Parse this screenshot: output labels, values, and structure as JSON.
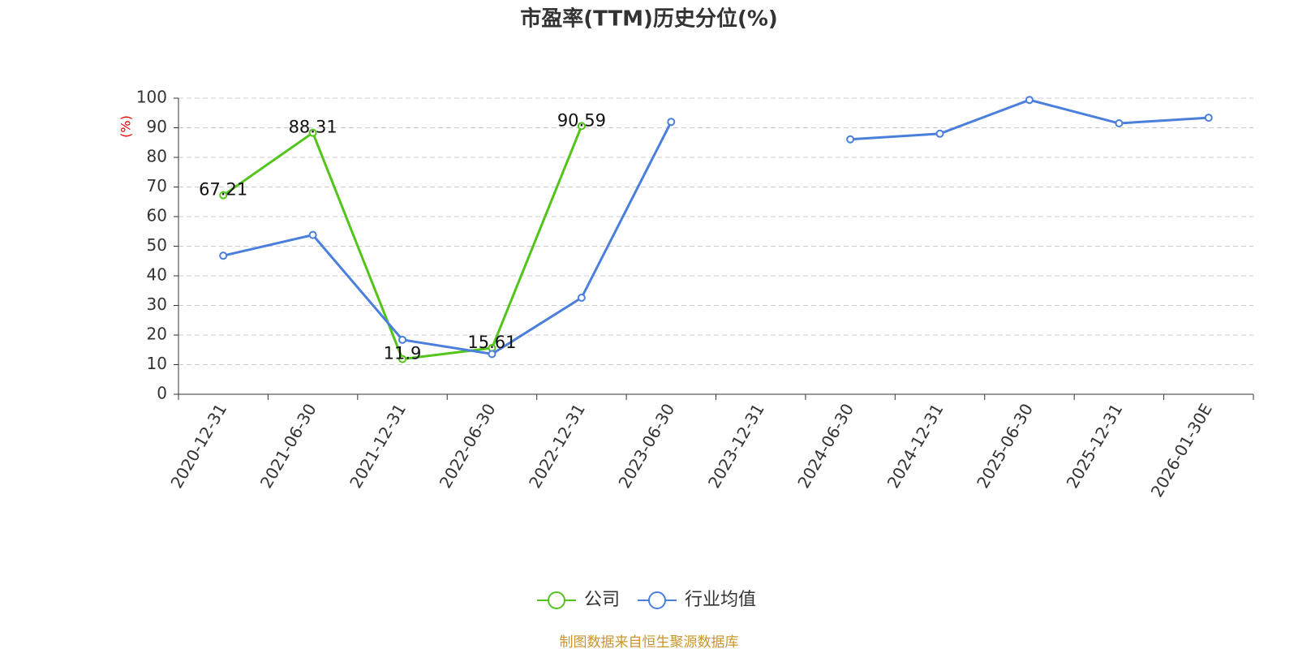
{
  "chart_data": {
    "type": "line",
    "title": "市盈率(TTM)历史分位(%)",
    "y_label": "(%)",
    "source": "制图数据来自恒生聚源数据库",
    "categories": [
      "2020-12-31",
      "2021-06-30",
      "2021-12-31",
      "2022-06-30",
      "2022-12-31",
      "2023-06-30",
      "2023-12-31",
      "2024-06-30",
      "2024-12-31",
      "2025-06-30",
      "2025-12-31",
      "2026-01-30E"
    ],
    "series": [
      {
        "name": "公司",
        "color": "#52c41a",
        "values": [
          67.21,
          88.31,
          11.9,
          15.61,
          90.59,
          null,
          null,
          null,
          null,
          null,
          null,
          null
        ],
        "show_labels": true
      },
      {
        "name": "行业均值",
        "color": "#4a7fdc",
        "values": [
          46.8,
          53.8,
          18.4,
          13.6,
          32.6,
          92.0,
          null,
          86.1,
          88.0,
          99.4,
          91.5,
          93.4
        ],
        "show_labels": false
      }
    ],
    "ylim": [
      0,
      100
    ],
    "yticks": [
      0,
      10,
      20,
      30,
      40,
      50,
      60,
      70,
      80,
      90,
      100
    ],
    "grid": true
  }
}
